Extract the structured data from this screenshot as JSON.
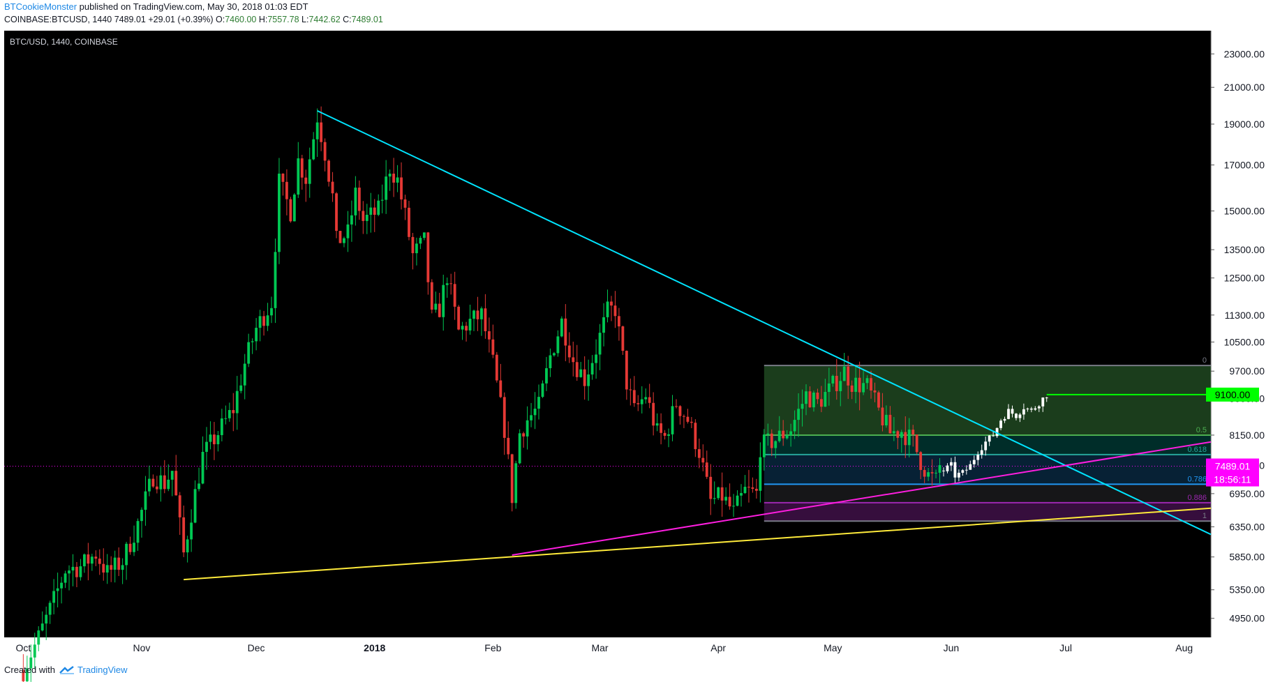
{
  "header": {
    "author": "BTCookieMonster",
    "published": "published on TradingView.com, May 30, 2018 01:03 EDT",
    "symbol": "COINBASE:BTCUSD, 1440",
    "last": "7489.01",
    "change": "+29.01 (+0.39%)",
    "o_label": "O:",
    "o": "7460.00",
    "h_label": "H:",
    "h": "7557.78",
    "l_label": "L:",
    "l": "7442.62",
    "c_label": "C:",
    "c": "7489.01"
  },
  "pane_label": "BTC/USD, 1440, COINBASE",
  "footer": {
    "created": "Created with",
    "brand": "TradingView"
  },
  "colors": {
    "up": "#00c853",
    "down": "#e53935",
    "projection": "#ffffff",
    "trend": "#00e5ff",
    "support_yellow": "#ffeb3b",
    "support_magenta": "#ff1ee0",
    "target": "#00ff00",
    "price_line": "#ff00ff"
  },
  "chart_data": {
    "type": "candlestick",
    "title": "BTC/USD, 1440, COINBASE",
    "y_scale": "log",
    "ylim": [
      4700,
      24500
    ],
    "xlim": [
      "2017-09-26",
      "2018-08-08"
    ],
    "y_ticks": [
      "23000.00",
      "21000.00",
      "19000.00",
      "17000.00",
      "15000.00",
      "13500.00",
      "12500.00",
      "11300.00",
      "10500.00",
      "9700.00",
      "9000.00",
      "8150.00",
      "7500.00",
      "6950.00",
      "6350.00",
      "5850.00",
      "5350.00",
      "4950.00"
    ],
    "x_ticks": [
      {
        "date": "2017-10-01",
        "label": "Oct"
      },
      {
        "date": "2017-11-01",
        "label": "Nov"
      },
      {
        "date": "2017-12-01",
        "label": "Dec"
      },
      {
        "date": "2018-01-01",
        "label": "2018"
      },
      {
        "date": "2018-02-01",
        "label": "Feb"
      },
      {
        "date": "2018-03-01",
        "label": "Mar"
      },
      {
        "date": "2018-04-01",
        "label": "Apr"
      },
      {
        "date": "2018-05-01",
        "label": "May"
      },
      {
        "date": "2018-06-01",
        "label": "Jun"
      },
      {
        "date": "2018-07-01",
        "label": "Jul"
      },
      {
        "date": "2018-08-01",
        "label": "Aug"
      }
    ],
    "price_path": [
      [
        "2017-10-01",
        4300
      ],
      [
        "2017-10-05",
        4700
      ],
      [
        "2017-10-09",
        5200
      ],
      [
        "2017-10-12",
        5650
      ],
      [
        "2017-10-16",
        5700
      ],
      [
        "2017-10-20",
        5900
      ],
      [
        "2017-10-23",
        5600
      ],
      [
        "2017-10-27",
        5780
      ],
      [
        "2017-10-31",
        6400
      ],
      [
        "2017-11-04",
        7300
      ],
      [
        "2017-11-07",
        7150
      ],
      [
        "2017-11-09",
        7400
      ],
      [
        "2017-11-12",
        5900
      ],
      [
        "2017-11-14",
        6600
      ],
      [
        "2017-11-17",
        7700
      ],
      [
        "2017-11-21",
        8200
      ],
      [
        "2017-11-25",
        8750
      ],
      [
        "2017-11-28",
        9900
      ],
      [
        "2017-12-01",
        10900
      ],
      [
        "2017-12-05",
        11700
      ],
      [
        "2017-12-07",
        16200
      ],
      [
        "2017-12-08",
        15800
      ],
      [
        "2017-12-10",
        15000
      ],
      [
        "2017-12-12",
        17200
      ],
      [
        "2017-12-14",
        16400
      ],
      [
        "2017-12-17",
        19400
      ],
      [
        "2017-12-19",
        17600
      ],
      [
        "2017-12-21",
        15600
      ],
      [
        "2017-12-22",
        13800
      ],
      [
        "2017-12-25",
        14100
      ],
      [
        "2017-12-27",
        15700
      ],
      [
        "2017-12-29",
        14600
      ],
      [
        "2018-01-02",
        15000
      ],
      [
        "2018-01-05",
        16900
      ],
      [
        "2018-01-07",
        16300
      ],
      [
        "2018-01-09",
        14800
      ],
      [
        "2018-01-11",
        13300
      ],
      [
        "2018-01-14",
        13800
      ],
      [
        "2018-01-16",
        11200
      ],
      [
        "2018-01-18",
        11500
      ],
      [
        "2018-01-20",
        12600
      ],
      [
        "2018-01-23",
        10800
      ],
      [
        "2018-01-26",
        11100
      ],
      [
        "2018-01-29",
        11300
      ],
      [
        "2018-02-01",
        9900
      ],
      [
        "2018-02-04",
        8300
      ],
      [
        "2018-02-06",
        6900
      ],
      [
        "2018-02-08",
        8200
      ],
      [
        "2018-02-10",
        8500
      ],
      [
        "2018-02-13",
        8800
      ],
      [
        "2018-02-16",
        10100
      ],
      [
        "2018-02-19",
        11100
      ],
      [
        "2018-02-22",
        10000
      ],
      [
        "2018-02-25",
        9500
      ],
      [
        "2018-02-28",
        10300
      ],
      [
        "2018-03-03",
        11400
      ],
      [
        "2018-03-05",
        11500
      ],
      [
        "2018-03-08",
        9400
      ],
      [
        "2018-03-10",
        8700
      ],
      [
        "2018-03-13",
        9100
      ],
      [
        "2018-03-16",
        8200
      ],
      [
        "2018-03-18",
        8100
      ],
      [
        "2018-03-21",
        8900
      ],
      [
        "2018-03-24",
        8500
      ],
      [
        "2018-03-27",
        7800
      ],
      [
        "2018-03-30",
        6800
      ],
      [
        "2018-04-02",
        6900
      ],
      [
        "2018-04-05",
        6600
      ],
      [
        "2018-04-08",
        7000
      ],
      [
        "2018-04-11",
        6950
      ],
      [
        "2018-04-12",
        7900
      ],
      [
        "2018-04-16",
        8050
      ],
      [
        "2018-04-20",
        8300
      ],
      [
        "2018-04-24",
        9100
      ],
      [
        "2018-04-27",
        8900
      ],
      [
        "2018-04-30",
        9200
      ],
      [
        "2018-05-04",
        9700
      ],
      [
        "2018-05-06",
        9400
      ],
      [
        "2018-05-10",
        9300
      ],
      [
        "2018-05-13",
        8700
      ],
      [
        "2018-05-16",
        8200
      ],
      [
        "2018-05-19",
        8250
      ],
      [
        "2018-05-22",
        8000
      ],
      [
        "2018-05-24",
        7600
      ],
      [
        "2018-05-26",
        7300
      ],
      [
        "2018-05-28",
        7200
      ],
      [
        "2018-05-29",
        7489
      ]
    ],
    "projection_path": [
      [
        "2018-05-30",
        7400
      ],
      [
        "2018-06-01",
        7500
      ],
      [
        "2018-06-02",
        7300
      ],
      [
        "2018-06-04",
        7350
      ],
      [
        "2018-06-06",
        7500
      ],
      [
        "2018-06-08",
        7800
      ],
      [
        "2018-06-10",
        8000
      ],
      [
        "2018-06-12",
        8150
      ],
      [
        "2018-06-14",
        8500
      ],
      [
        "2018-06-16",
        8700
      ],
      [
        "2018-06-18",
        8600
      ],
      [
        "2018-06-20",
        8800
      ],
      [
        "2018-06-22",
        8700
      ],
      [
        "2018-06-24",
        8900
      ],
      [
        "2018-06-26",
        9100
      ]
    ],
    "fib_retracement": {
      "start": "2018-04-13",
      "end": "2018-08-08",
      "high": 9850,
      "low": 6450,
      "levels": [
        {
          "ratio": "0",
          "price": 9850,
          "color": "#787b86"
        },
        {
          "ratio": "0.5",
          "price": 8150,
          "color": "#4caf50"
        },
        {
          "ratio": "0.618",
          "price": 7730,
          "color": "#26a69a"
        },
        {
          "ratio": "0.786",
          "price": 7130,
          "color": "#2196f3"
        },
        {
          "ratio": "0.886",
          "price": 6780,
          "color": "#9c27b0"
        },
        {
          "ratio": "1",
          "price": 6450,
          "color": "#787b86"
        }
      ]
    },
    "trendlines": [
      {
        "name": "descending",
        "color": "#00e5ff",
        "from": [
          "2017-12-17",
          19700
        ],
        "to": [
          "2018-08-08",
          6220
        ]
      },
      {
        "name": "support-yellow",
        "color": "#ffeb3b",
        "from": [
          "2017-11-12",
          5500
        ],
        "to": [
          "2018-08-08",
          6680
        ]
      },
      {
        "name": "support-magenta",
        "color": "#ff1ee0",
        "from": [
          "2018-02-06",
          5880
        ],
        "to": [
          "2018-08-08",
          8000
        ]
      }
    ],
    "target_line": {
      "price": 9100,
      "from": "2018-06-26",
      "label": "9100.00"
    },
    "last_price": {
      "price": 7489.01,
      "label": "7489.01",
      "countdown": "18:56:11"
    }
  }
}
